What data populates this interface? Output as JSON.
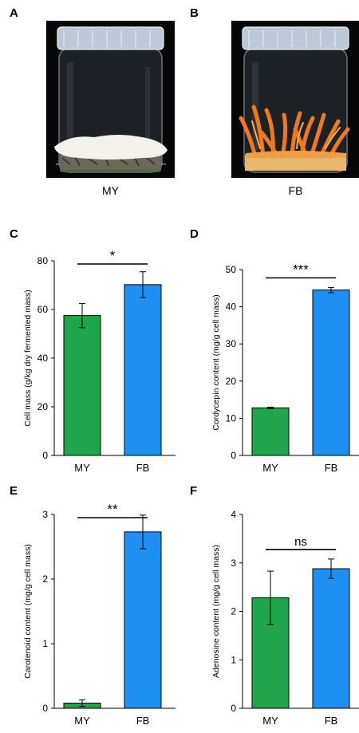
{
  "photos": [
    {
      "letter": "A",
      "caption": "MY"
    },
    {
      "letter": "B",
      "caption": "FB"
    }
  ],
  "colors": {
    "MY": "#1fa64a",
    "FB": "#1e90f2",
    "lid": "#bcc8d6",
    "mycelium": "#f4f2ec",
    "fruiting_body": "#f07a1a"
  },
  "chart_data": [
    {
      "type": "bar",
      "letter": "C",
      "categories": [
        "MY",
        "FB"
      ],
      "values": [
        57.5,
        70.2
      ],
      "errors": [
        5,
        5.3
      ],
      "ylabel": "Cell mass (g/kg dry fermented mass)",
      "ylim": [
        0,
        80
      ],
      "yticks": [
        "0",
        "20",
        "40",
        "60",
        "80"
      ],
      "significance": "*",
      "grid": false
    },
    {
      "type": "bar",
      "letter": "D",
      "categories": [
        "MY",
        "FB"
      ],
      "values": [
        12.8,
        44.5
      ],
      "errors": [
        0.2,
        0.7
      ],
      "ylabel": "Cordycepin content (mg/g cell mass)",
      "ylim": [
        0,
        50
      ],
      "yticks": [
        "0",
        "10",
        "20",
        "30",
        "40",
        "50"
      ],
      "significance": "***",
      "grid": false
    },
    {
      "type": "bar",
      "letter": "E",
      "categories": [
        "MY",
        "FB"
      ],
      "values": [
        0.08,
        2.73
      ],
      "errors": [
        0.05,
        0.26
      ],
      "ylabel": "Carotenoid content (mg/g cell mass)",
      "ylim": [
        0,
        3
      ],
      "yticks": [
        "0",
        "1",
        "2",
        "3"
      ],
      "significance": "**",
      "grid": false
    },
    {
      "type": "bar",
      "letter": "F",
      "categories": [
        "MY",
        "FB"
      ],
      "values": [
        2.28,
        2.88
      ],
      "errors": [
        0.55,
        0.2
      ],
      "ylabel": "Adenosine content (mg/g cell mass)",
      "ylim": [
        0,
        4
      ],
      "yticks": [
        "0",
        "1",
        "2",
        "3",
        "4"
      ],
      "significance": "ns",
      "grid": false
    }
  ]
}
